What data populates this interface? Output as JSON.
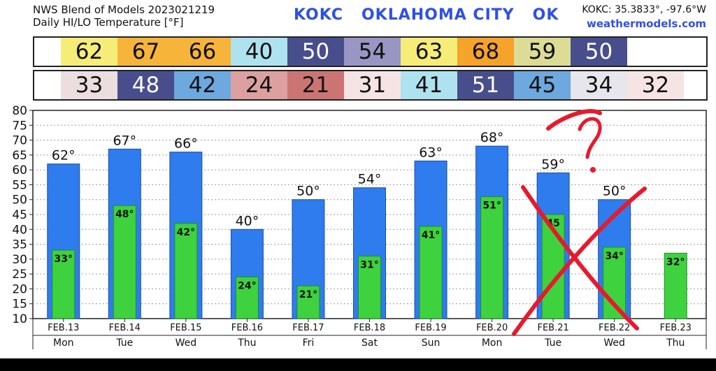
{
  "header": {
    "model_line": "NWS Blend of Models 2023021219",
    "subtitle": "Daily HI/LO Temperature [°F]",
    "station_title": "KOKC   OKLAHOMA CITY   OK",
    "coords": "KOKC: 35.3833°, -97.6°W",
    "site": "weathermodels.com"
  },
  "hi_strip": [
    {
      "value": "62",
      "bg": "#f6ec78",
      "fg": "#111111"
    },
    {
      "value": "67",
      "bg": "#f6b43a",
      "fg": "#111111"
    },
    {
      "value": "66",
      "bg": "#f6b43a",
      "fg": "#111111"
    },
    {
      "value": "40",
      "bg": "#aee2ee",
      "fg": "#111111"
    },
    {
      "value": "50",
      "bg": "#484e8c",
      "fg": "#ffffff"
    },
    {
      "value": "54",
      "bg": "#9a96c4",
      "fg": "#111111"
    },
    {
      "value": "63",
      "bg": "#f6ec78",
      "fg": "#111111"
    },
    {
      "value": "68",
      "bg": "#f6a32a",
      "fg": "#111111"
    },
    {
      "value": "59",
      "bg": "#dcdc96",
      "fg": "#111111"
    },
    {
      "value": "50",
      "bg": "#484e8c",
      "fg": "#ffffff"
    }
  ],
  "lo_strip": [
    {
      "value": "33",
      "bg": "#ecdede",
      "fg": "#111111"
    },
    {
      "value": "48",
      "bg": "#484e8c",
      "fg": "#ffffff"
    },
    {
      "value": "42",
      "bg": "#6da8de",
      "fg": "#111111"
    },
    {
      "value": "24",
      "bg": "#dca0a0",
      "fg": "#111111"
    },
    {
      "value": "21",
      "bg": "#cc7474",
      "fg": "#111111"
    },
    {
      "value": "31",
      "bg": "#f6e4e4",
      "fg": "#111111"
    },
    {
      "value": "41",
      "bg": "#aee2ee",
      "fg": "#111111"
    },
    {
      "value": "51",
      "bg": "#484e8c",
      "fg": "#ffffff"
    },
    {
      "value": "45",
      "bg": "#6da8de",
      "fg": "#111111"
    },
    {
      "value": "34",
      "bg": "#e6e6ec",
      "fg": "#111111"
    },
    {
      "value": "32",
      "bg": "#f6e4e4",
      "fg": "#111111"
    }
  ],
  "chart_data": {
    "type": "bar",
    "title": "Daily HI/LO Temperature [°F]",
    "ylim": [
      10,
      80
    ],
    "yticks": [
      10,
      15,
      20,
      25,
      30,
      35,
      40,
      45,
      50,
      55,
      60,
      65,
      70,
      75,
      80
    ],
    "grid": true,
    "dates": [
      "FEB.13",
      "FEB.14",
      "FEB.15",
      "FEB.16",
      "FEB.17",
      "FEB.18",
      "FEB.19",
      "FEB.20",
      "FEB.21",
      "FEB.22",
      "FEB.23"
    ],
    "days": [
      "Mon",
      "Tue",
      "Wed",
      "Thu",
      "Fri",
      "Sat",
      "Sun",
      "Mon",
      "Tue",
      "Wed",
      "Thu"
    ],
    "series": [
      {
        "values": [
          62,
          67,
          66,
          40,
          50,
          54,
          63,
          68,
          59,
          50,
          null
        ],
        "labels": [
          "62°",
          "67°",
          "66°",
          "40°",
          "50°",
          "54°",
          "63°",
          "68°",
          "59°",
          "50°",
          ""
        ],
        "color": "#2e7cee"
      },
      {
        "values": [
          33,
          48,
          42,
          24,
          21,
          31,
          41,
          51,
          45,
          34,
          32
        ],
        "labels": [
          "33°",
          "48°",
          "42°",
          "24°",
          "21°",
          "31°",
          "41°",
          "51°",
          "45",
          "34°",
          "32°"
        ],
        "color": "#3ed23e"
      }
    ],
    "annotations": {
      "question_mark": "?",
      "color": "#e8192c"
    }
  }
}
